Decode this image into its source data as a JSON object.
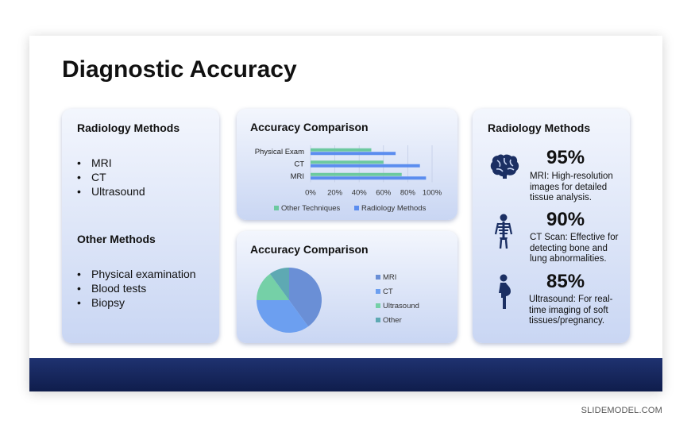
{
  "slide": {
    "title": "Diagnostic Accuracy",
    "credit": "SLIDEMODEL.COM"
  },
  "left_card": {
    "heading1": "Radiology Methods",
    "list1": [
      "MRI",
      "CT",
      "Ultrasound"
    ],
    "heading2": "Other Methods",
    "list2": [
      "Physical examination",
      "Blood tests",
      "Biopsy"
    ]
  },
  "colors": {
    "bar_radiology": "#5b8def",
    "bar_other": "#6cc9a0",
    "pie_mri": "#6a8fd6",
    "pie_ct": "#6c9ff0",
    "pie_ultrasound": "#75d0a7",
    "pie_other": "#5ea9b3",
    "bottom_bar": "#1a2a66"
  },
  "bar_card": {
    "heading": "Accuracy Comparison"
  },
  "pie_card": {
    "heading": "Accuracy Comparison"
  },
  "right_card": {
    "heading": "Radiology Methods",
    "stats": [
      {
        "icon": "brain-icon",
        "value": "95%",
        "text": "MRI: High-resolution images for detailed tissue analysis."
      },
      {
        "icon": "skeleton-icon",
        "value": "90%",
        "text": "CT Scan: Effective for detecting bone and lung abnormalities."
      },
      {
        "icon": "pregnant-woman-icon",
        "value": "85%",
        "text": "Ultrasound: For real-time imaging of soft tissues/pregnancy."
      }
    ]
  },
  "chart_data": [
    {
      "type": "bar",
      "orientation": "horizontal",
      "title": "Accuracy Comparison",
      "categories": [
        "MRI",
        "CT",
        "Physical Exam"
      ],
      "series": [
        {
          "name": "Radiology Methods",
          "values": [
            0.95,
            0.9,
            0.7
          ]
        },
        {
          "name": "Other Techniques",
          "values": [
            0.75,
            0.6,
            0.5
          ]
        }
      ],
      "xlim": [
        0,
        1
      ],
      "ticks": [
        "0%",
        "20%",
        "40%",
        "60%",
        "80%",
        "100%"
      ],
      "grid": true,
      "legend": "bottom"
    },
    {
      "type": "pie",
      "title": "Accuracy Comparison",
      "labels": [
        "MRI",
        "CT",
        "Ultrasound",
        "Other"
      ],
      "values": [
        40,
        35,
        15,
        10
      ],
      "legend": "right"
    }
  ]
}
